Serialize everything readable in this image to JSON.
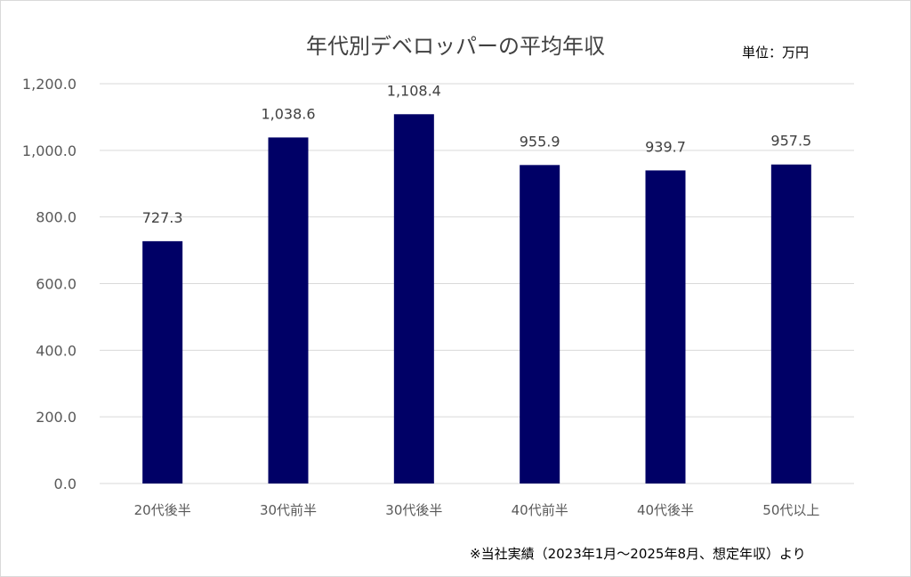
{
  "chart_data": {
    "type": "bar",
    "title": "年代別デベロッパーの平均年収",
    "unit_label": "単位：万円",
    "categories": [
      "20代後半",
      "30代前半",
      "30代後半",
      "40代前半",
      "40代後半",
      "50代以上"
    ],
    "values": [
      727.3,
      1038.6,
      1108.4,
      955.9,
      939.7,
      957.5
    ],
    "value_labels": [
      "727.3",
      "1,038.6",
      "1,108.4",
      "955.9",
      "939.7",
      "957.5"
    ],
    "ylim": [
      0,
      1200
    ],
    "yticks": [
      0,
      200,
      400,
      600,
      800,
      1000,
      1200
    ],
    "ytick_labels": [
      "0.0",
      "200.0",
      "400.0",
      "600.0",
      "800.0",
      "1,000.0",
      "1,200.0"
    ],
    "xlabel": "",
    "ylabel": "",
    "grid": true,
    "legend": false,
    "bar_color": "#000066",
    "gridline_color": "#d9d9d9",
    "note": "※当社実績（2023年1月～2025年8月、想定年収）より"
  }
}
